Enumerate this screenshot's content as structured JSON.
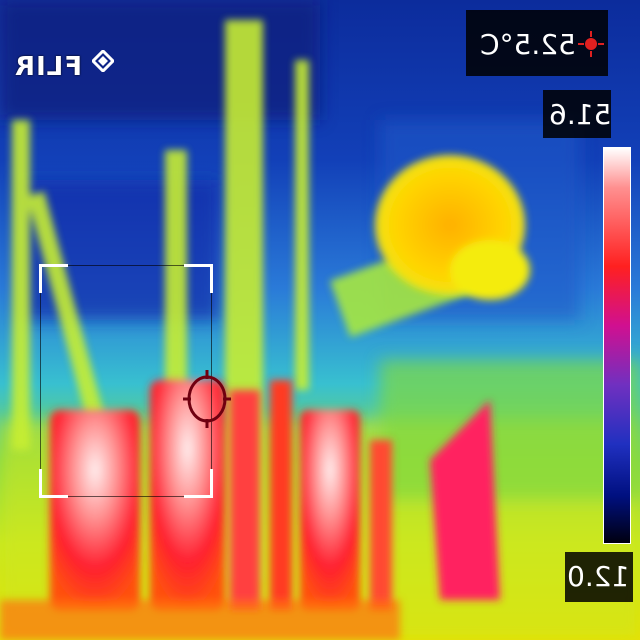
{
  "camera": {
    "brand": "FLIR"
  },
  "readouts": {
    "spot_temperature": "52.5°C",
    "scale_max": "51.6",
    "scale_min": "12.0"
  },
  "icons": {
    "logo_mark": "flir-diamond-icon",
    "spot_marker": "spot-crosshair-icon"
  },
  "colors": {
    "hot": "#ffffff",
    "warm": "#ff2020",
    "mid": "#ffee00",
    "cool": "#30c0ff",
    "cold": "#102090"
  },
  "palette": "rainbow-hc",
  "image_mirrored": true
}
